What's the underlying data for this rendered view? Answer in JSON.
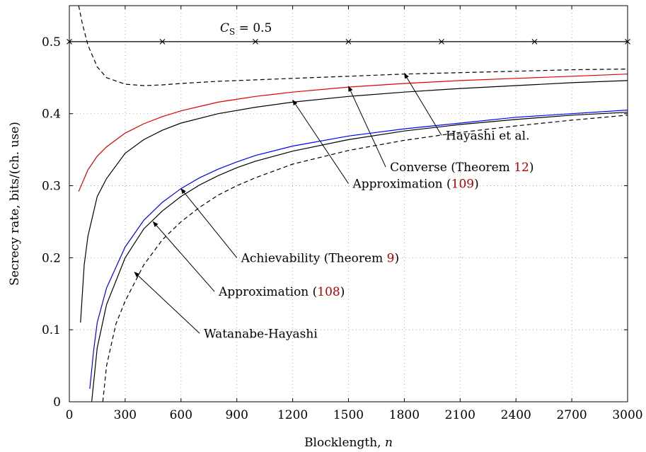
{
  "chart_data": {
    "type": "line",
    "title": "",
    "xlabel": "Blocklength, n",
    "ylabel": "Secrecy rate, bits/(ch. use)",
    "xlim": [
      0,
      3000
    ],
    "ylim": [
      0,
      0.55
    ],
    "xticks": [
      0,
      300,
      600,
      900,
      1200,
      1500,
      1800,
      2100,
      2400,
      2700,
      3000
    ],
    "yticks": [
      0,
      0.1,
      0.2,
      0.3,
      0.4,
      0.5
    ],
    "grid": true,
    "legend": "none",
    "capacity_label": {
      "name": "C",
      "sub": "S",
      "value": " = 0.5"
    },
    "series": [
      {
        "id": "capacity",
        "style": "solid",
        "color": "#000000",
        "marker": "x",
        "x": [
          0,
          500,
          1000,
          1500,
          2000,
          2500,
          3000
        ],
        "y": [
          0.5,
          0.5,
          0.5,
          0.5,
          0.5,
          0.5,
          0.5
        ]
      },
      {
        "id": "hayashi",
        "style": "dashed",
        "color": "#000000",
        "x": [
          50,
          70,
          100,
          150,
          200,
          300,
          400,
          500,
          600,
          800,
          1000,
          1200,
          1500,
          1800,
          2100,
          2400,
          2700,
          3000
        ],
        "y": [
          0.55,
          0.525,
          0.495,
          0.465,
          0.45,
          0.441,
          0.439,
          0.44,
          0.442,
          0.445,
          0.447,
          0.449,
          0.452,
          0.455,
          0.457,
          0.459,
          0.461,
          0.462
        ]
      },
      {
        "id": "converse",
        "style": "solid",
        "color": "#e00000",
        "x": [
          50,
          100,
          150,
          200,
          300,
          400,
          500,
          600,
          700,
          800,
          900,
          1000,
          1200,
          1500,
          1800,
          2100,
          2400,
          2700,
          3000
        ],
        "y": [
          0.292,
          0.322,
          0.341,
          0.354,
          0.373,
          0.386,
          0.396,
          0.404,
          0.41,
          0.416,
          0.42,
          0.424,
          0.43,
          0.437,
          0.442,
          0.446,
          0.449,
          0.452,
          0.455
        ]
      },
      {
        "id": "approx109",
        "style": "solid",
        "color": "#000000",
        "x": [
          60,
          80,
          100,
          150,
          200,
          300,
          400,
          500,
          600,
          800,
          1000,
          1200,
          1500,
          1800,
          2100,
          2400,
          2700,
          3000
        ],
        "y": [
          0.11,
          0.19,
          0.23,
          0.285,
          0.31,
          0.345,
          0.364,
          0.377,
          0.387,
          0.4,
          0.409,
          0.416,
          0.424,
          0.43,
          0.435,
          0.439,
          0.443,
          0.446
        ]
      },
      {
        "id": "achievability",
        "style": "solid",
        "color": "#0000ff",
        "x": [
          110,
          130,
          150,
          200,
          300,
          400,
          500,
          600,
          700,
          800,
          900,
          1000,
          1200,
          1500,
          1800,
          2100,
          2400,
          2700,
          3000
        ],
        "y": [
          0.018,
          0.07,
          0.11,
          0.158,
          0.215,
          0.252,
          0.277,
          0.296,
          0.311,
          0.323,
          0.333,
          0.342,
          0.355,
          0.369,
          0.379,
          0.387,
          0.395,
          0.4,
          0.405
        ]
      },
      {
        "id": "approx108",
        "style": "solid",
        "color": "#000000",
        "x": [
          120,
          150,
          200,
          300,
          400,
          500,
          600,
          700,
          800,
          900,
          1000,
          1200,
          1500,
          1800,
          2100,
          2400,
          2700,
          3000
        ],
        "y": [
          0.0,
          0.075,
          0.135,
          0.2,
          0.24,
          0.265,
          0.285,
          0.301,
          0.314,
          0.325,
          0.334,
          0.348,
          0.364,
          0.376,
          0.385,
          0.392,
          0.398,
          0.402
        ]
      },
      {
        "id": "watanabe",
        "style": "dashed",
        "color": "#000000",
        "x": [
          180,
          200,
          250,
          300,
          400,
          500,
          600,
          700,
          800,
          900,
          1000,
          1200,
          1500,
          1800,
          2100,
          2400,
          2700,
          3000
        ],
        "y": [
          0.0,
          0.05,
          0.108,
          0.14,
          0.19,
          0.225,
          0.25,
          0.27,
          0.287,
          0.3,
          0.311,
          0.33,
          0.349,
          0.363,
          0.374,
          0.383,
          0.391,
          0.398
        ]
      }
    ],
    "annotations": [
      {
        "id": "hayashi",
        "text": "Hayashi et al.",
        "ref": "",
        "suffix": "",
        "point": [
          1800,
          0.456
        ],
        "label_xy": [
          2000,
          0.37
        ]
      },
      {
        "id": "converse",
        "text": "Converse (Theorem ",
        "ref": "12",
        "suffix": ")",
        "point": [
          1500,
          0.438
        ],
        "label_xy": [
          1700,
          0.326
        ]
      },
      {
        "id": "approx109",
        "text": "Approximation (",
        "ref": "109",
        "suffix": ")",
        "point": [
          1200,
          0.419
        ],
        "label_xy": [
          1500,
          0.303
        ]
      },
      {
        "id": "achievability",
        "text": "Achievability (Theorem ",
        "ref": "9",
        "suffix": ")",
        "point": [
          600,
          0.296
        ],
        "label_xy": [
          900,
          0.2
        ]
      },
      {
        "id": "approx108",
        "text": "Approximation (",
        "ref": "108",
        "suffix": ")",
        "point": [
          450,
          0.25
        ],
        "label_xy": [
          780,
          0.153
        ]
      },
      {
        "id": "watanabe",
        "text": "Watanabe-Hayashi",
        "ref": "",
        "suffix": "",
        "point": [
          350,
          0.18
        ],
        "label_xy": [
          700,
          0.095
        ]
      }
    ]
  }
}
